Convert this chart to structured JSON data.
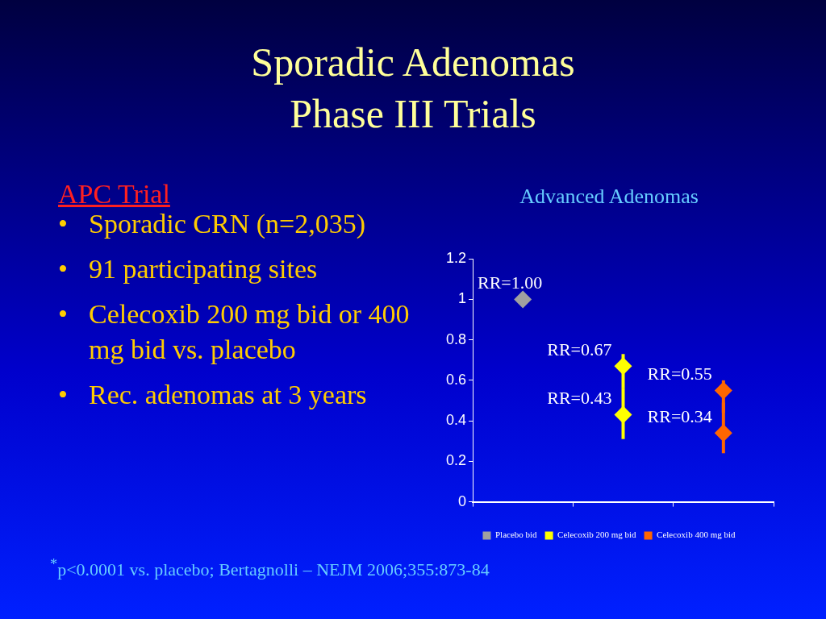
{
  "chart_data": {
    "type": "scatter",
    "title": "Sporadic Adenomas\nPhase III Trials",
    "subtitle": "Advanced Adenomas",
    "annotations": [
      "APC Trial",
      "•\tSporadic CRN (n=2,035)",
      "•\t91 participating sites",
      "•\tCelecoxib 200 mg bid or 400 mg bid vs. placebo",
      "•\tRec. adenomas at 3 years",
      "$^{*}$p<0.0001 vs. placebo; Bertagnolli – NEJM 2006;355:873-84"
    ],
    "categories": [
      null,
      null,
      null
    ],
    "series": [
      {
        "name": "Placebo bid",
        "color": "#a0a0a0",
        "values": [
          1.0,
          null,
          null
        ],
        "value_labels": [
          "RR=1.00",
          null,
          null
        ]
      },
      {
        "name": "Celecoxib 200 mg bid",
        "color": "#ffff00",
        "values": [
          null,
          0.67,
          null
        ],
        "errors": [
          null,
          [
            0.56,
            0.73
          ],
          null
        ],
        "value_labels": [
          null,
          "RR=0.67",
          null
        ]
      },
      {
        "name": "Celecoxib 400 mg bid",
        "color": "#ff6600",
        "values": [
          null,
          null,
          0.55
        ],
        "errors": [
          null,
          null,
          [
            0.44,
            0.6
          ]
        ],
        "value_labels": [
          null,
          null,
          "RR=0.55"
        ]
      },
      {
        "color": "#ffff00",
        "values": [
          null,
          0.43,
          null
        ],
        "errors": [
          null,
          [
            0.31,
            0.56
          ],
          null
        ],
        "value_labels": [
          null,
          "RR=0.43",
          null
        ]
      },
      {
        "color": "#ff6600",
        "values": [
          null,
          null,
          0.34
        ],
        "errors": [
          null,
          null,
          [
            0.24,
            0.49
          ]
        ],
        "value_labels": [
          null,
          null,
          "RR=0.34"
        ]
      }
    ],
    "ylim": [
      0,
      1.2
    ],
    "yticks": [
      0,
      0.2,
      0.4,
      0.6,
      0.8,
      1,
      1.2
    ],
    "grid": false,
    "legend": "bottom",
    "marker": "diamond"
  }
}
